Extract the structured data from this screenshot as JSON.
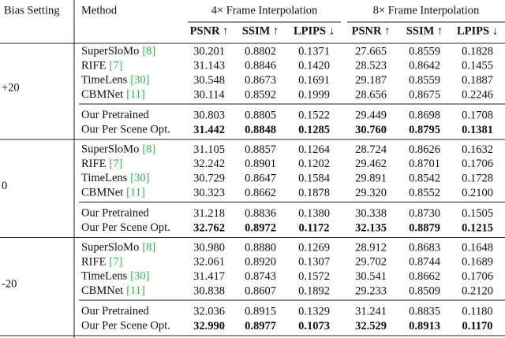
{
  "table": {
    "header": {
      "bias_setting": "Bias Setting",
      "method": "Method",
      "spans": [
        "4× Frame Interpolation",
        "8× Frame Interpolation"
      ],
      "metrics": [
        "PSNR ↑",
        "SSIM ↑",
        "LPIPS ↓",
        "PSNR ↑",
        "SSIM ↑",
        "LPIPS ↓"
      ]
    },
    "groups": [
      {
        "bias": "+20",
        "blocks": [
          {
            "rows": [
              {
                "method": "SuperSloMo",
                "cite": "[8]",
                "cells": [
                  "30.201",
                  "0.8802",
                  "0.1371",
                  "27.665",
                  "0.8559",
                  "0.1828"
                ]
              },
              {
                "method": "RIFE",
                "cite": "[7]",
                "cells": [
                  "31.143",
                  "0.8846",
                  "0.1420",
                  "28.523",
                  "0.8642",
                  "0.1455"
                ]
              },
              {
                "method": "TimeLens",
                "cite": "[30]",
                "cells": [
                  "30.548",
                  "0.8673",
                  "0.1691",
                  "29.187",
                  "0.8559",
                  "0.1887"
                ]
              },
              {
                "method": "CBMNet",
                "cite": "[11]",
                "cells": [
                  "30.114",
                  "0.8592",
                  "0.1999",
                  "28.656",
                  "0.8675",
                  "0.2246"
                ]
              }
            ]
          },
          {
            "rows": [
              {
                "method": "Our Pretrained",
                "cells": [
                  "30.803",
                  "0.8805",
                  "0.1522",
                  "29.449",
                  "0.8698",
                  "0.1708"
                ]
              },
              {
                "method": "Our Per Scene Opt.",
                "bold": true,
                "cells": [
                  "31.442",
                  "0.8848",
                  "0.1285",
                  "30.760",
                  "0.8795",
                  "0.1381"
                ]
              }
            ]
          }
        ]
      },
      {
        "bias": "0",
        "blocks": [
          {
            "rows": [
              {
                "method": "SuperSloMo",
                "cite": "[8]",
                "cells": [
                  "31.105",
                  "0.8857",
                  "0.1264",
                  "28.724",
                  "0.8626",
                  "0.1632"
                ]
              },
              {
                "method": "RIFE",
                "cite": "[7]",
                "cells": [
                  "32.242",
                  "0.8901",
                  "0.1202",
                  "29.462",
                  "0.8701",
                  "0.1706"
                ]
              },
              {
                "method": "TimeLens",
                "cite": "[30]",
                "cells": [
                  "30.729",
                  "0.8647",
                  "0.1584",
                  "29.891",
                  "0.8542",
                  "0.1728"
                ]
              },
              {
                "method": "CBMNet",
                "cite": "[11]",
                "cells": [
                  "30.323",
                  "0.8662",
                  "0.1878",
                  "29.320",
                  "0.8552",
                  "0.2100"
                ]
              }
            ]
          },
          {
            "rows": [
              {
                "method": "Our Pretrained",
                "cells": [
                  "31.218",
                  "0.8836",
                  "0.1380",
                  "30.338",
                  "0.8730",
                  "0.1505"
                ]
              },
              {
                "method": "Our Per Scene Opt.",
                "bold": true,
                "cells": [
                  "32.762",
                  "0.8972",
                  "0.1172",
                  "32.135",
                  "0.8879",
                  "0.1215"
                ]
              }
            ]
          }
        ]
      },
      {
        "bias": "-20",
        "blocks": [
          {
            "rows": [
              {
                "method": "SuperSloMo",
                "cite": "[8]",
                "cells": [
                  "30.980",
                  "0.8880",
                  "0.1269",
                  "28.912",
                  "0.8683",
                  "0.1648"
                ]
              },
              {
                "method": "RIFE",
                "cite": "[7]",
                "cells": [
                  "32.061",
                  "0.8920",
                  "0.1307",
                  "29.702",
                  "0.8744",
                  "0.1689"
                ]
              },
              {
                "method": "TimeLens",
                "cite": "[30]",
                "cells": [
                  "31.417",
                  "0.8743",
                  "0.1572",
                  "30.541",
                  "0.8662",
                  "0.1706"
                ]
              },
              {
                "method": "CBMNet",
                "cite": "[11]",
                "cells": [
                  "30.838",
                  "0.8607",
                  "0.1892",
                  "29.233",
                  "0.8509",
                  "0.2120"
                ]
              }
            ]
          },
          {
            "rows": [
              {
                "method": "Our Pretrained",
                "cells": [
                  "32.036",
                  "0.8915",
                  "0.1329",
                  "31.241",
                  "0.8835",
                  "0.1180"
                ]
              },
              {
                "method": "Our Per Scene Opt.",
                "bold": true,
                "cells": [
                  "32.990",
                  "0.8977",
                  "0.1073",
                  "32.529",
                  "0.8913",
                  "0.1170"
                ]
              }
            ]
          }
        ]
      }
    ]
  }
}
